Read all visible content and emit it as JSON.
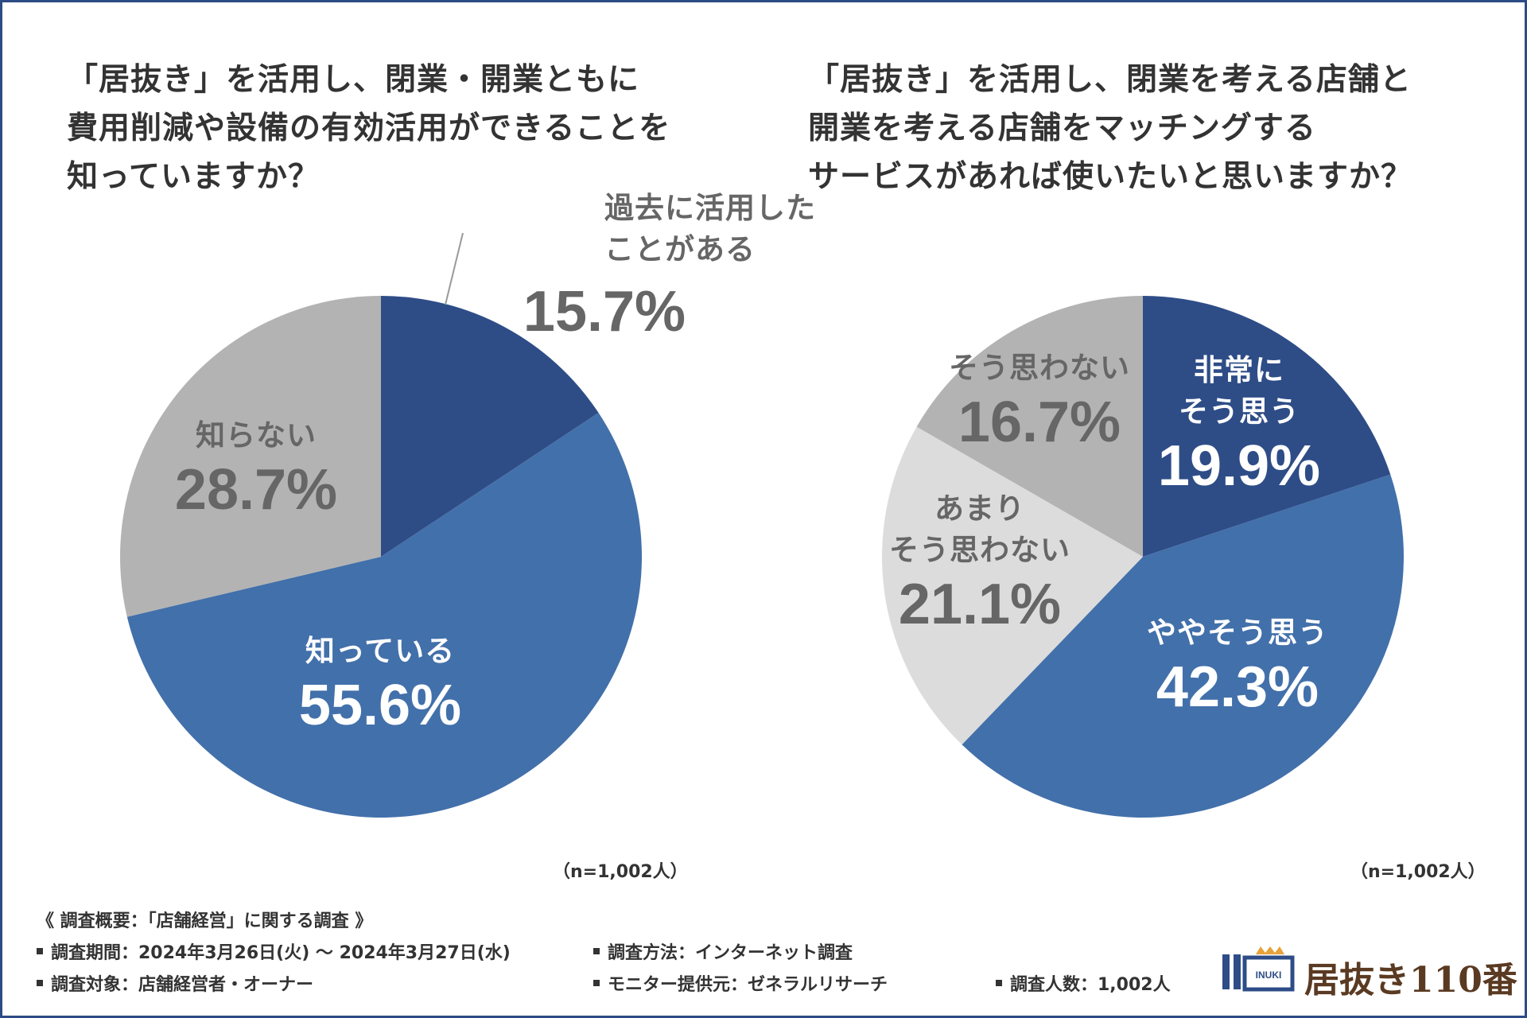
{
  "chart1": {
    "title_lines": [
      "「居抜き」を活用し、閉業・開業ともに",
      "費用削減や設備の有効活用ができることを",
      "知っていますか？"
    ],
    "n_note": "（n=1,002人）"
  },
  "chart2": {
    "title_lines": [
      "「居抜き」を活用し、閉業を考える店舗と",
      "開業を考える店舗をマッチングする",
      "サービスがあれば使いたいと思いますか？"
    ],
    "n_note": "（n=1,002人）"
  },
  "chart_data": [
    {
      "type": "pie",
      "title": "「居抜き」を活用し、閉業・開業ともに費用削減や設備の有効活用ができることを知っていますか？",
      "start": "12 o'clock, clockwise",
      "slices": [
        {
          "label_lines": [
            "過去に活用した",
            "ことがある"
          ],
          "value": 15.7,
          "value_text": "15.7%",
          "color": "#2e4d87"
        },
        {
          "label_lines": [
            "知っている"
          ],
          "value": 55.6,
          "value_text": "55.6%",
          "color": "#4270aa"
        },
        {
          "label_lines": [
            "知らない"
          ],
          "value": 28.7,
          "value_text": "28.7%",
          "color": "#b3b3b3"
        }
      ]
    },
    {
      "type": "pie",
      "title": "「居抜き」を活用し、閉業を考える店舗と開業を考える店舗をマッチングするサービスがあれば使いたいと思いますか？",
      "start": "12 o'clock, clockwise",
      "slices": [
        {
          "label_lines": [
            "非常に",
            "そう思う"
          ],
          "value": 19.9,
          "value_text": "19.9%",
          "color": "#2e4d87"
        },
        {
          "label_lines": [
            "ややそう思う"
          ],
          "value": 42.3,
          "value_text": "42.3%",
          "color": "#4270aa"
        },
        {
          "label_lines": [
            "あまり",
            "そう思わない"
          ],
          "value": 21.1,
          "value_text": "21.1%",
          "color": "#dcdcdc"
        },
        {
          "label_lines": [
            "そう思わない"
          ],
          "value": 16.7,
          "value_text": "16.7%",
          "color": "#b3b3b3"
        }
      ]
    }
  ],
  "footer": {
    "heading": "《 調査概要：「店舗経営」に関する調査 》",
    "period": "調査期間：2024年3月26日(火) 〜 2024年3月27日(水)",
    "method": "調査方法：インターネット調査",
    "target": "調査対象：店舗経営者・オーナー",
    "provider": "モニター提供元：ゼネラルリサーチ",
    "count": "調査人数：1,002人"
  },
  "logo": {
    "text": "居抜き110番",
    "badge": "INUKI"
  }
}
